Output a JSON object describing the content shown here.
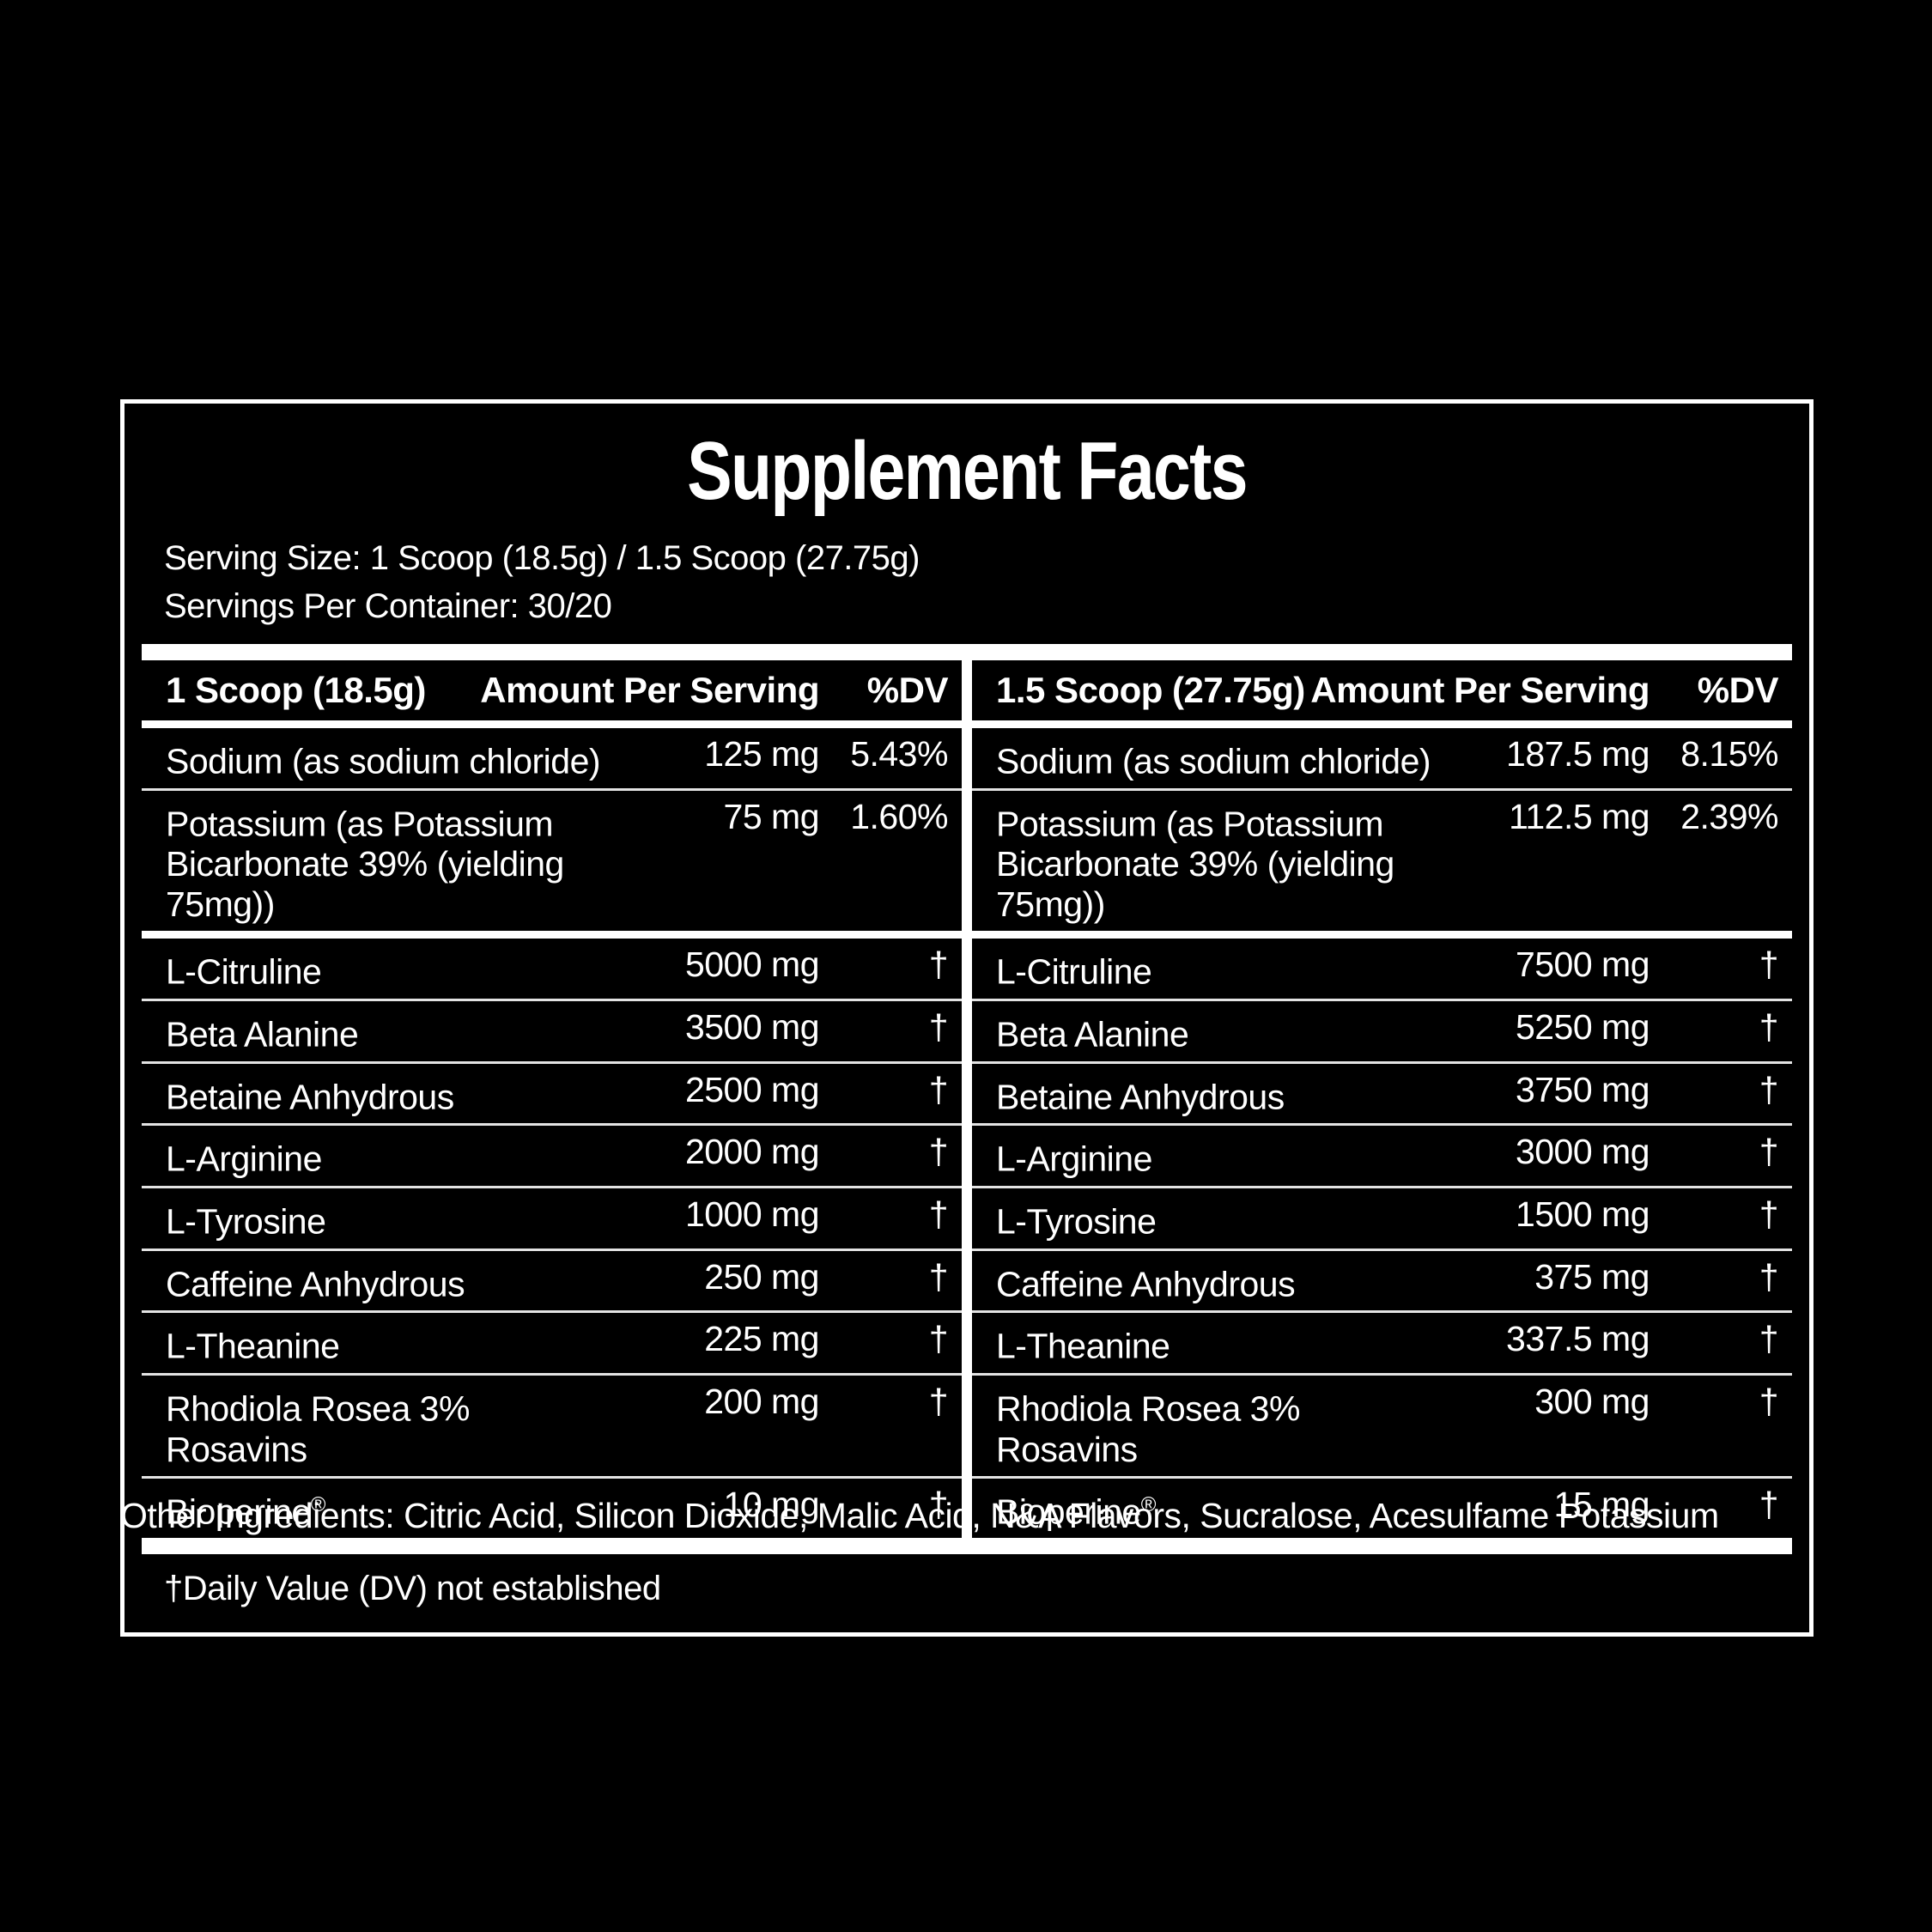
{
  "panel": {
    "title": "Supplement Facts",
    "serving_size": "Serving Size: 1 Scoop (18.5g) / 1.5 Scoop (27.75g)",
    "servings_per_container": "Servings Per Container: 30/20",
    "footnote": "†Daily Value (DV) not established",
    "other_ingredients": "Other Ingredients: Citric Acid, Silicon Dioxide, Malic Acid, N&A Flavors, Sucralose, Acesulfame Potassium"
  },
  "colors": {
    "background": "#000000",
    "text": "#ffffff",
    "divider_thin": "#e3e3e3",
    "divider_thick": "#ffffff"
  },
  "tables": [
    {
      "scoop_label": "1 Scoop (18.5g)",
      "amount_header": "Amount Per Serving",
      "dv_header": "%DV",
      "minerals": [
        {
          "name": "Sodium (as sodium chloride)",
          "amount": "125 mg",
          "dv": "5.43%"
        },
        {
          "name": "Potassium (as Potassium",
          "name2": "Bicarbonate 39% (yielding 75mg))",
          "amount": "75 mg",
          "dv": "1.60%"
        }
      ],
      "ingredients": [
        {
          "name": "L-Citruline",
          "amount": "5000 mg",
          "dv": "†"
        },
        {
          "name": "Beta Alanine",
          "amount": "3500 mg",
          "dv": "†"
        },
        {
          "name": "Betaine Anhydrous",
          "amount": "2500 mg",
          "dv": "†"
        },
        {
          "name": "L-Arginine",
          "amount": "2000 mg",
          "dv": "†"
        },
        {
          "name": "L-Tyrosine",
          "amount": "1000 mg",
          "dv": "†"
        },
        {
          "name": "Caffeine Anhydrous",
          "amount": "250 mg",
          "dv": "†"
        },
        {
          "name": "L-Theanine",
          "amount": "225 mg",
          "dv": "†"
        },
        {
          "name": "Rhodiola Rosea 3%",
          "name2": "Rosavins",
          "amount": "200 mg",
          "dv": "†"
        },
        {
          "name": "Bioperine",
          "reg": "®",
          "amount": "10 mg",
          "dv": "†"
        }
      ]
    },
    {
      "scoop_label": "1.5 Scoop (27.75g)",
      "amount_header": "Amount Per Serving",
      "dv_header": "%DV",
      "minerals": [
        {
          "name": "Sodium (as sodium chloride)",
          "amount": "187.5 mg",
          "dv": "8.15%"
        },
        {
          "name": "Potassium (as Potassium",
          "name2": "Bicarbonate 39% (yielding 75mg))",
          "amount": "112.5 mg",
          "dv": "2.39%"
        }
      ],
      "ingredients": [
        {
          "name": "L-Citruline",
          "amount": "7500 mg",
          "dv": "†"
        },
        {
          "name": "Beta Alanine",
          "amount": "5250 mg",
          "dv": "†"
        },
        {
          "name": "Betaine Anhydrous",
          "amount": "3750 mg",
          "dv": "†"
        },
        {
          "name": "L-Arginine",
          "amount": "3000 mg",
          "dv": "†"
        },
        {
          "name": "L-Tyrosine",
          "amount": "1500 mg",
          "dv": "†"
        },
        {
          "name": "Caffeine Anhydrous",
          "amount": "375 mg",
          "dv": "†"
        },
        {
          "name": "L-Theanine",
          "amount": "337.5 mg",
          "dv": "†"
        },
        {
          "name": "Rhodiola Rosea 3%",
          "name2": "Rosavins",
          "amount": "300 mg",
          "dv": "†"
        },
        {
          "name": "Bioperine",
          "reg": "®",
          "amount": "15 mg",
          "dv": "†"
        }
      ]
    }
  ]
}
